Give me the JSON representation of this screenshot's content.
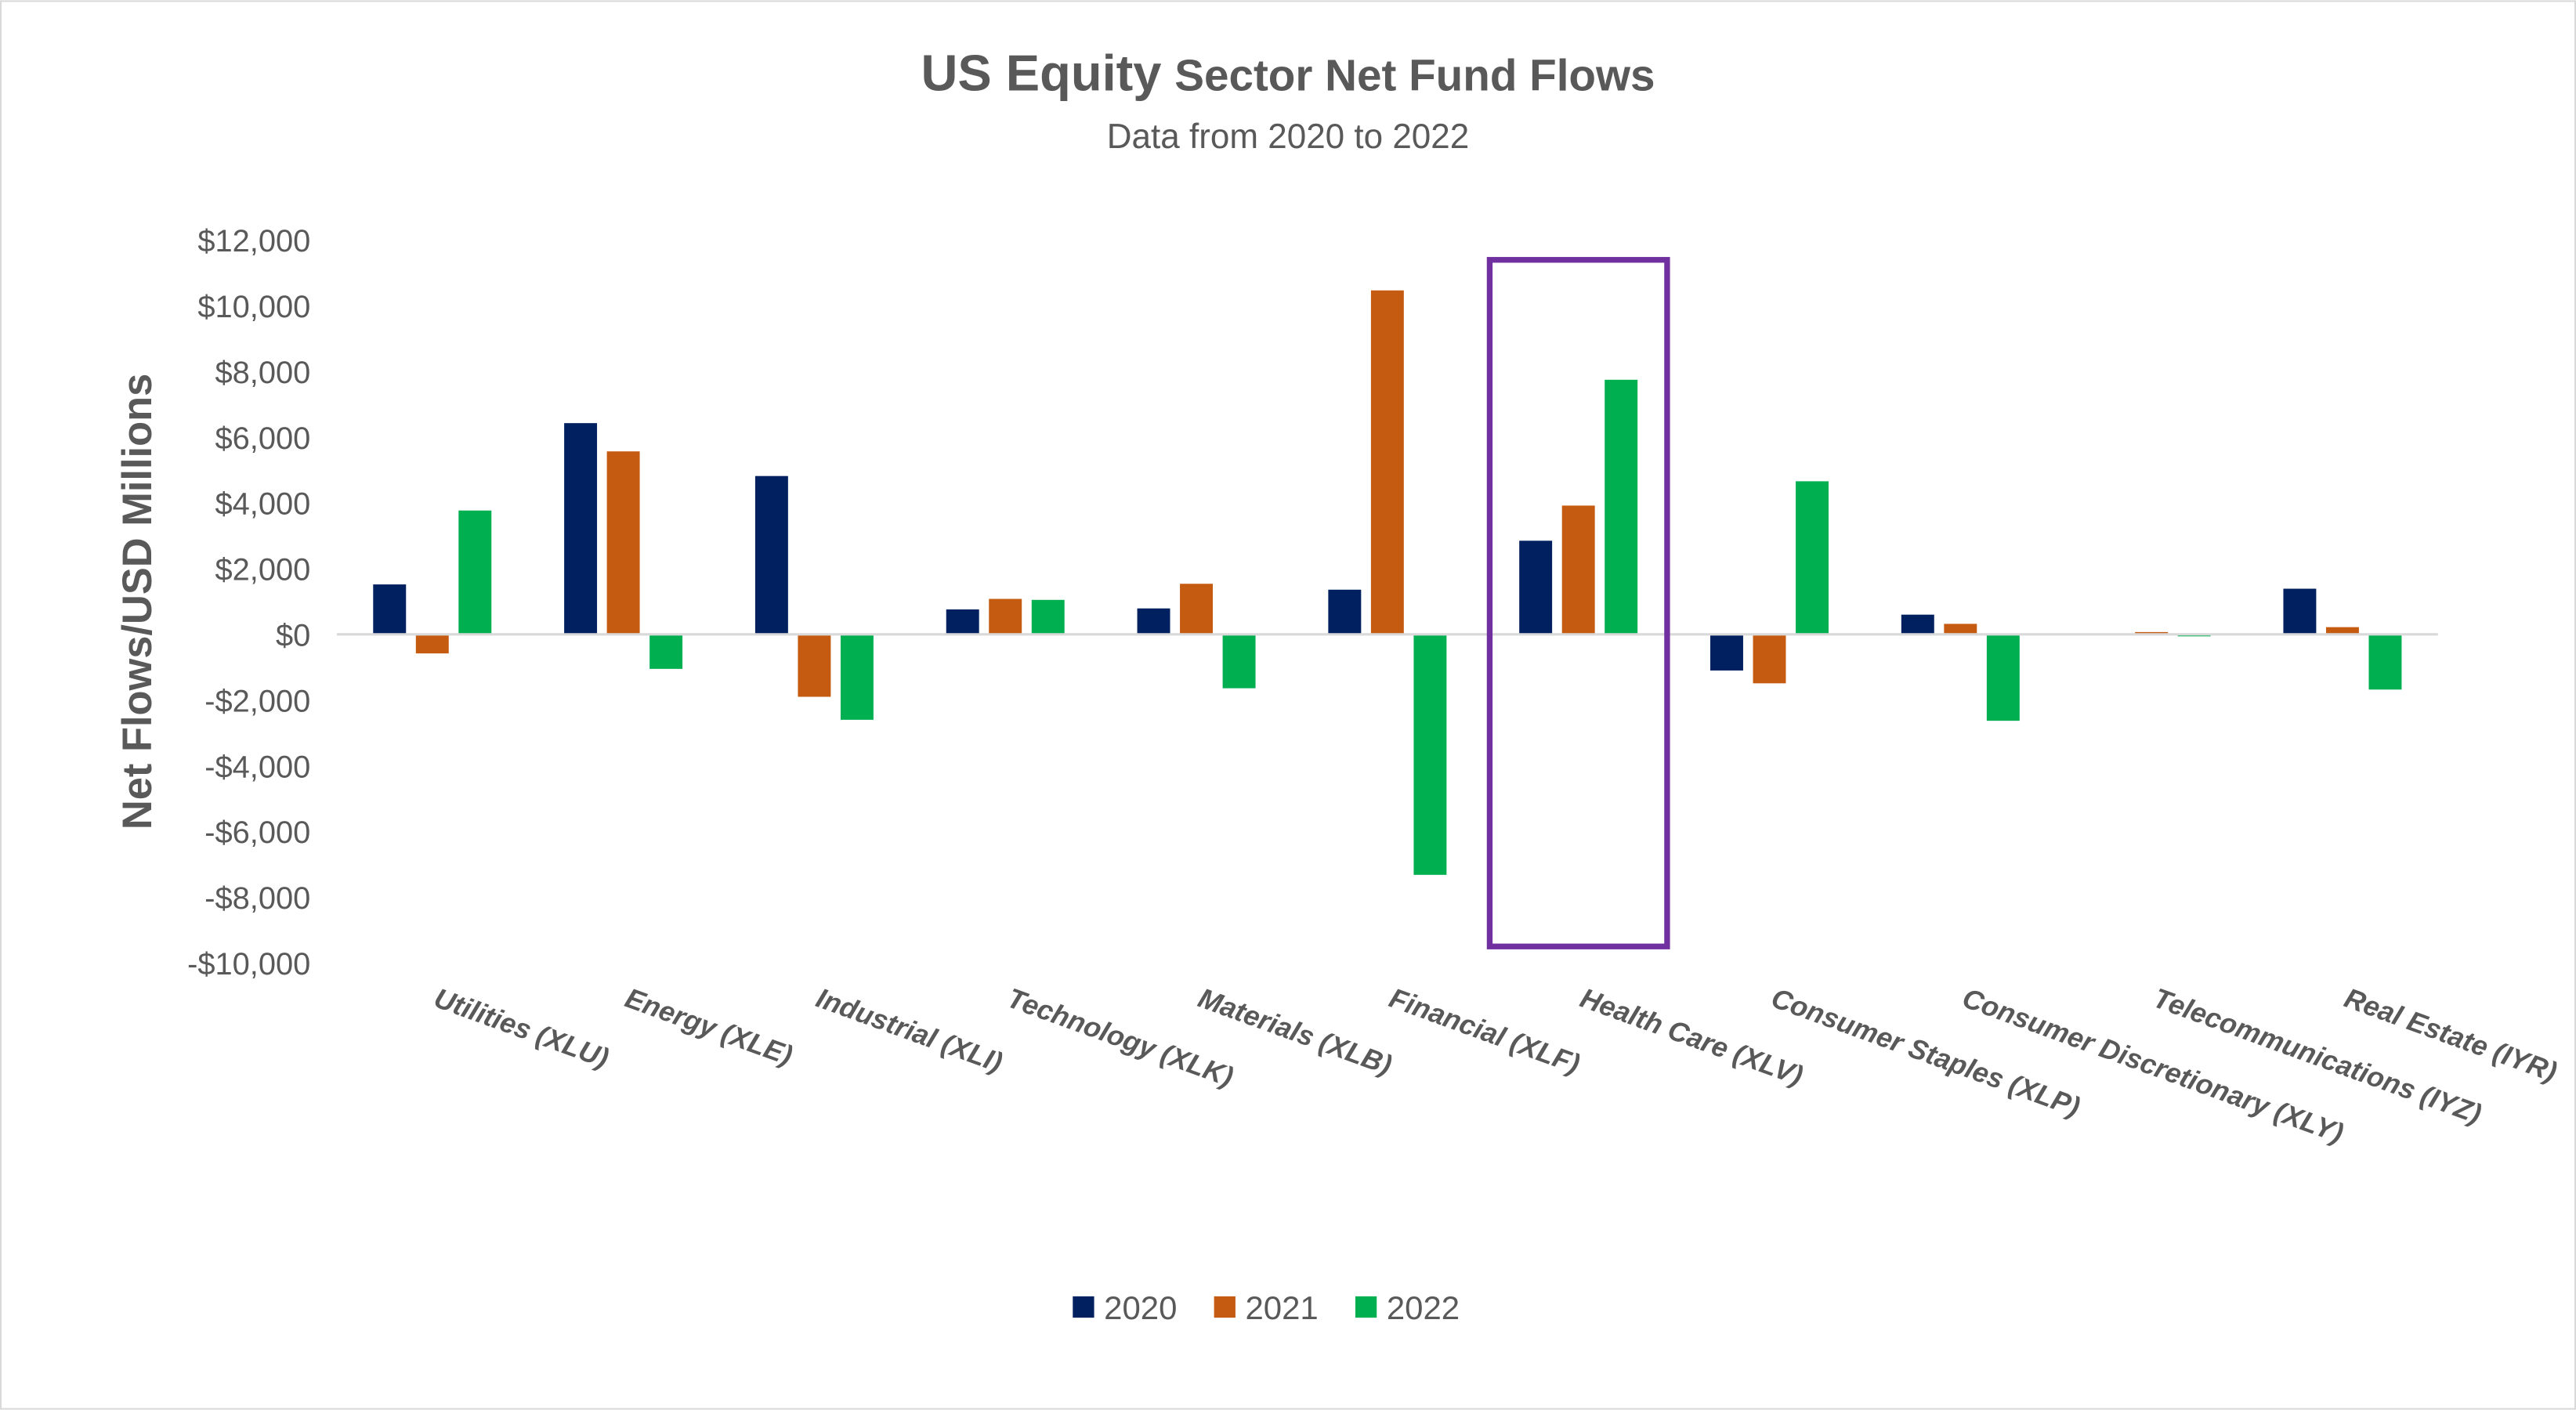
{
  "chart_data": {
    "type": "bar",
    "title_main": "US Equity",
    "title_rest": "Sector Net Fund Flows",
    "subtitle": "Data from 2020 to 2022",
    "ylabel": "Net Flows/USD Millions",
    "xlabel": "",
    "ylim": [
      -10000,
      12000
    ],
    "yticks": [
      12000,
      10000,
      8000,
      6000,
      4000,
      2000,
      0,
      -2000,
      -4000,
      -6000,
      -8000,
      -10000
    ],
    "ytick_labels": [
      "$12,000",
      "$10,000",
      "$8,000",
      "$6,000",
      "$4,000",
      "$2,000",
      "$0",
      "-$2,000",
      "-$4,000",
      "-$6,000",
      "-$8,000",
      "-$10,000"
    ],
    "grid": false,
    "legend_position": "bottom",
    "categories": [
      "Utilities (XLU)",
      "Energy (XLE)",
      "Industrial (XLI)",
      "Technology (XLK)",
      "Materials (XLB)",
      "Financial (XLF)",
      "Health Care (XLV)",
      "Consumer Staples (XLP)",
      "Consumer Discretionary (XLY)",
      "Telecommunications (IYZ)",
      "Real Estate (IYR)"
    ],
    "series": [
      {
        "name": "2020",
        "color": "#002060",
        "values": [
          1520,
          6430,
          4820,
          760,
          790,
          1360,
          2850,
          -1100,
          600,
          0,
          1390
        ]
      },
      {
        "name": "2021",
        "color": "#C55A11",
        "values": [
          -580,
          5570,
          -1900,
          1080,
          1540,
          10470,
          3920,
          -1490,
          320,
          70,
          220
        ]
      },
      {
        "name": "2022",
        "color": "#00B050",
        "values": [
          3770,
          -1050,
          -2600,
          1050,
          -1640,
          -7320,
          7750,
          4660,
          -2630,
          -60,
          -1680
        ]
      }
    ],
    "highlight": {
      "category": "Health Care (XLV)",
      "color": "#7030A0"
    },
    "axis_color": "#D9D9D9",
    "text_color": "#595959"
  }
}
